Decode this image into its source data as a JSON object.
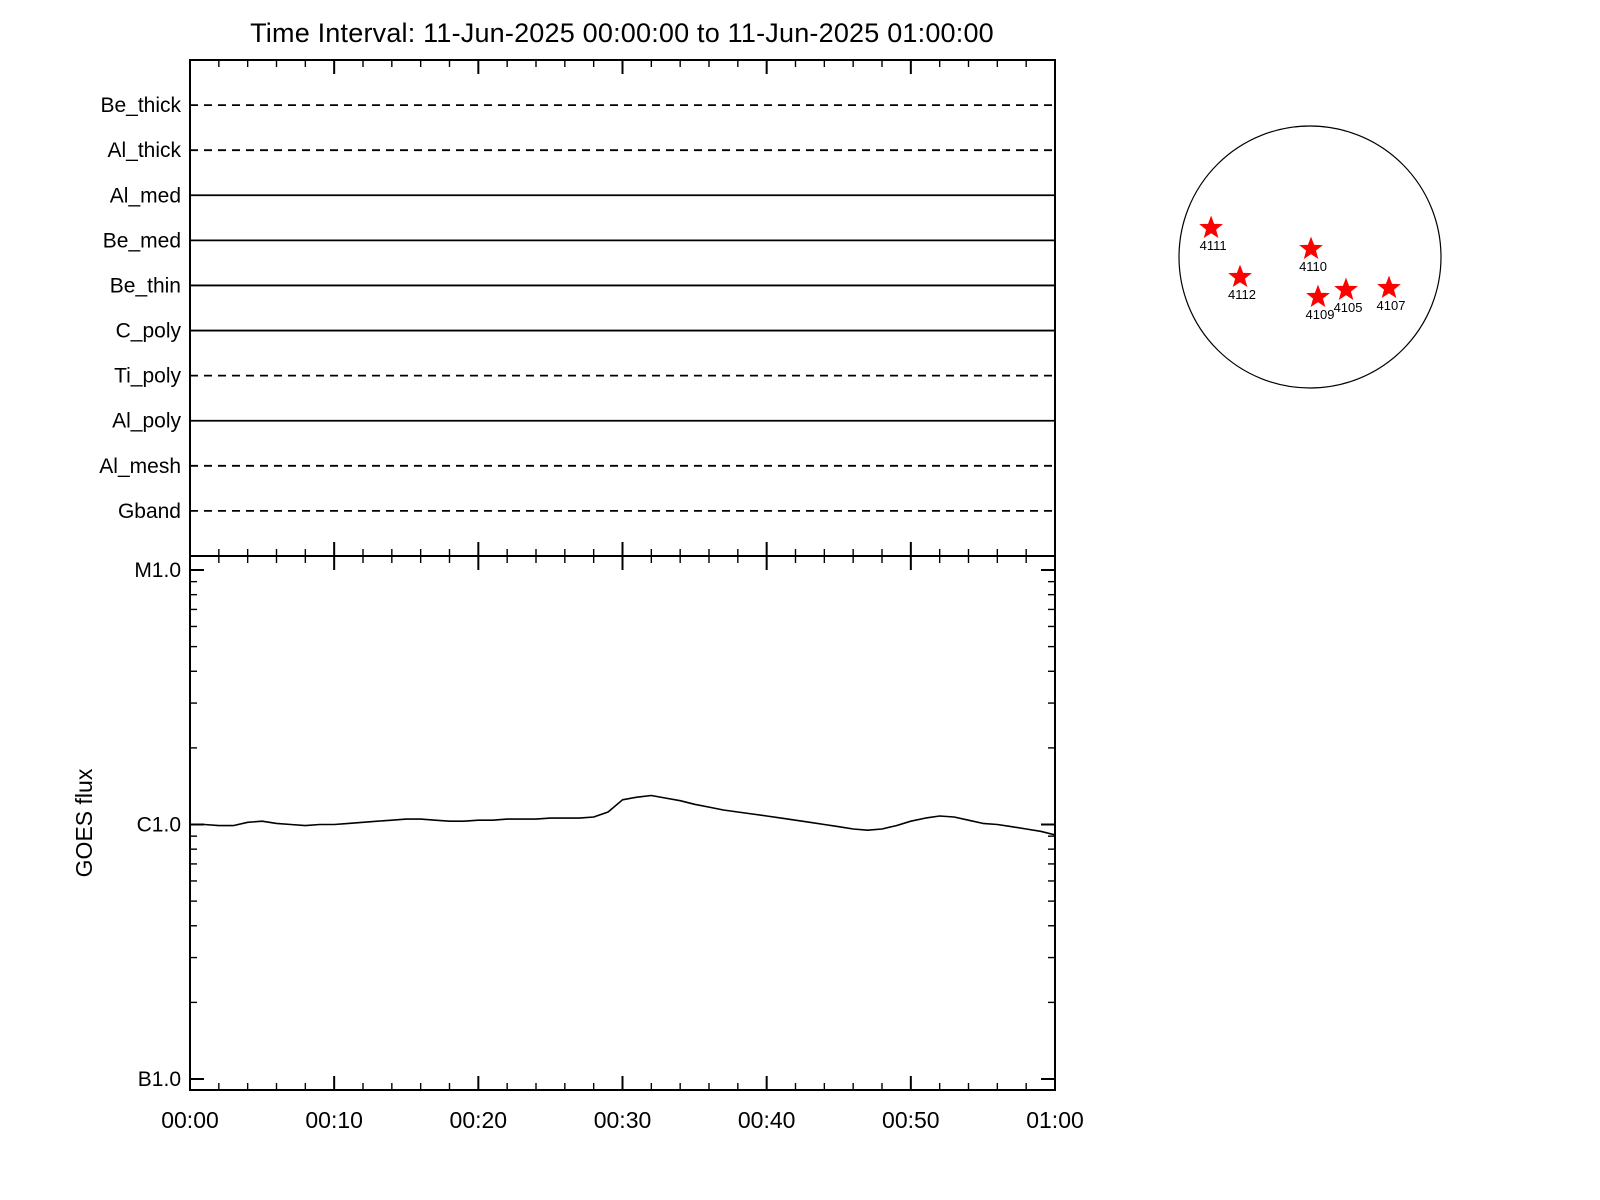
{
  "title": "Time Interval: 11-Jun-2025 00:00:00 to 11-Jun-2025 01:00:00",
  "chart_data": [
    {
      "type": "timeline",
      "panel": "xrt-filter-timeline",
      "rows": [
        {
          "label": "Be_thick",
          "line_style": "dashed"
        },
        {
          "label": "Al_thick",
          "line_style": "dashed"
        },
        {
          "label": "Al_med",
          "line_style": "solid"
        },
        {
          "label": "Be_med",
          "line_style": "solid"
        },
        {
          "label": "Be_thin",
          "line_style": "solid"
        },
        {
          "label": "C_poly",
          "line_style": "solid"
        },
        {
          "label": "Ti_poly",
          "line_style": "dashed"
        },
        {
          "label": "Al_poly",
          "line_style": "solid"
        },
        {
          "label": "Al_mesh",
          "line_style": "dashed"
        },
        {
          "label": "Gband",
          "line_style": "dashed"
        }
      ],
      "x_range": [
        "00:00",
        "01:00"
      ]
    },
    {
      "type": "line",
      "panel": "goes-flux",
      "ylabel": "GOES flux",
      "y_scale": "log",
      "y_ticks": [
        {
          "label": "M1.0",
          "flux_c1_units": 10
        },
        {
          "label": "C1.0",
          "flux_c1_units": 1
        },
        {
          "label": "B1.0",
          "flux_c1_units": 0.1
        }
      ],
      "x_tick_labels": [
        "00:00",
        "00:10",
        "00:20",
        "00:30",
        "00:40",
        "00:50",
        "01:00"
      ],
      "x_minutes": [
        0,
        1,
        2,
        3,
        4,
        5,
        6,
        7,
        8,
        9,
        10,
        11,
        12,
        13,
        14,
        15,
        16,
        17,
        18,
        19,
        20,
        21,
        22,
        23,
        24,
        25,
        26,
        27,
        28,
        29,
        30,
        31,
        32,
        33,
        34,
        35,
        36,
        37,
        38,
        39,
        40,
        41,
        42,
        43,
        44,
        45,
        46,
        47,
        48,
        49,
        50,
        51,
        52,
        53,
        54,
        55,
        56,
        57,
        58,
        59,
        60
      ],
      "flux_c1_units": [
        1.0,
        1.0,
        0.99,
        0.99,
        1.02,
        1.03,
        1.01,
        1.0,
        0.99,
        1.0,
        1.0,
        1.01,
        1.02,
        1.03,
        1.04,
        1.05,
        1.05,
        1.04,
        1.03,
        1.03,
        1.04,
        1.04,
        1.05,
        1.05,
        1.05,
        1.06,
        1.06,
        1.06,
        1.07,
        1.12,
        1.25,
        1.28,
        1.3,
        1.27,
        1.24,
        1.2,
        1.17,
        1.14,
        1.12,
        1.1,
        1.08,
        1.06,
        1.04,
        1.02,
        1.0,
        0.98,
        0.96,
        0.95,
        0.96,
        0.99,
        1.03,
        1.06,
        1.08,
        1.07,
        1.04,
        1.01,
        1.0,
        0.98,
        0.96,
        0.94,
        0.91
      ]
    },
    {
      "type": "scatter",
      "panel": "solar-disk-active-regions",
      "marker": "star",
      "marker_color": "#ff0000",
      "regions": [
        {
          "label": "4111",
          "disk_x": -0.755,
          "disk_y": -0.221
        },
        {
          "label": "4110",
          "disk_x": 0.008,
          "disk_y": -0.061
        },
        {
          "label": "4112",
          "disk_x": -0.534,
          "disk_y": 0.153
        },
        {
          "label": "4109",
          "disk_x": 0.061,
          "disk_y": 0.305
        },
        {
          "label": "4105",
          "disk_x": 0.275,
          "disk_y": 0.252
        },
        {
          "label": "4107",
          "disk_x": 0.603,
          "disk_y": 0.237
        }
      ]
    }
  ]
}
